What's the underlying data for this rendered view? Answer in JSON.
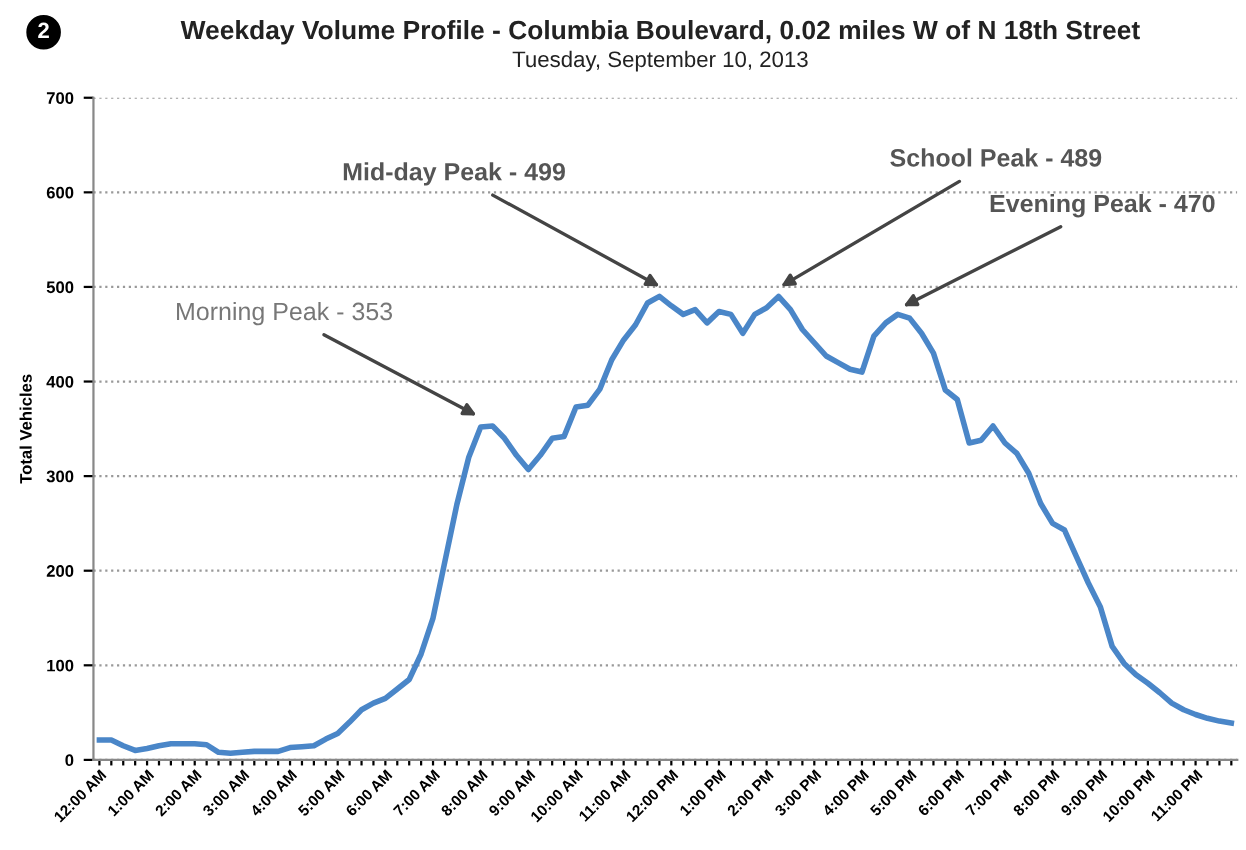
{
  "chart_data": {
    "type": "line",
    "title": "Weekday Volume Profile - Columbia Boulevard, 0.02 miles W of N 18th Street",
    "subtitle": "Tuesday, September 10, 2013",
    "ylabel": "Total Vehicles",
    "categories": [
      "12:00 AM",
      null,
      null,
      null,
      "1:00 AM",
      null,
      null,
      null,
      "2:00 AM",
      null,
      null,
      null,
      "3:00 AM",
      null,
      null,
      null,
      "4:00 AM",
      null,
      null,
      null,
      "5:00 AM",
      null,
      null,
      null,
      "6:00 AM",
      null,
      null,
      null,
      "7:00 AM",
      null,
      null,
      null,
      "8:00 AM",
      null,
      null,
      null,
      "9:00 AM",
      null,
      null,
      null,
      "10:00 AM",
      null,
      null,
      null,
      "11:00 AM",
      null,
      null,
      null,
      "12:00 PM",
      null,
      null,
      null,
      "1:00 PM",
      null,
      null,
      null,
      "2:00 PM",
      null,
      null,
      null,
      "3:00 PM",
      null,
      null,
      null,
      "4:00 PM",
      null,
      null,
      null,
      "5:00 PM",
      null,
      null,
      null,
      "6:00 PM",
      null,
      null,
      null,
      "7:00 PM",
      null,
      null,
      null,
      "8:00 PM",
      null,
      null,
      null,
      "9:00 PM",
      null,
      null,
      null,
      "10:00 PM",
      null,
      null,
      null,
      "11:00 PM",
      null,
      null,
      null
    ],
    "series": [
      {
        "color": "#4a86c8",
        "values": [
          21,
          21,
          15,
          10,
          12,
          15,
          17,
          17,
          17,
          16,
          8,
          7,
          8,
          9,
          9,
          9,
          13,
          14,
          15,
          22,
          28,
          40,
          53,
          60,
          65,
          75,
          85,
          112,
          150,
          210,
          270,
          320,
          352,
          353,
          340,
          322,
          307,
          322,
          340,
          342,
          373,
          375,
          392,
          423,
          444,
          460,
          483,
          490,
          480,
          471,
          476,
          462,
          474,
          471,
          451,
          471,
          478,
          490,
          476,
          455,
          441,
          427,
          420,
          413,
          410,
          448,
          462,
          471,
          467,
          451,
          430,
          391,
          381,
          335,
          338,
          353,
          335,
          324,
          303,
          271,
          250,
          243,
          215,
          187,
          162,
          120,
          102,
          90,
          81,
          71,
          60,
          53,
          48,
          44,
          41,
          39
        ]
      }
    ],
    "ylim": [
      0,
      700
    ],
    "yticks": [
      0,
      100,
      200,
      300,
      400,
      500,
      600,
      700
    ],
    "grid": "y",
    "annotations": [
      "2",
      "Morning Peak - 353",
      "Mid-day Peak - 499",
      "School Peak - 489",
      "Evening Peak - 470"
    ]
  }
}
